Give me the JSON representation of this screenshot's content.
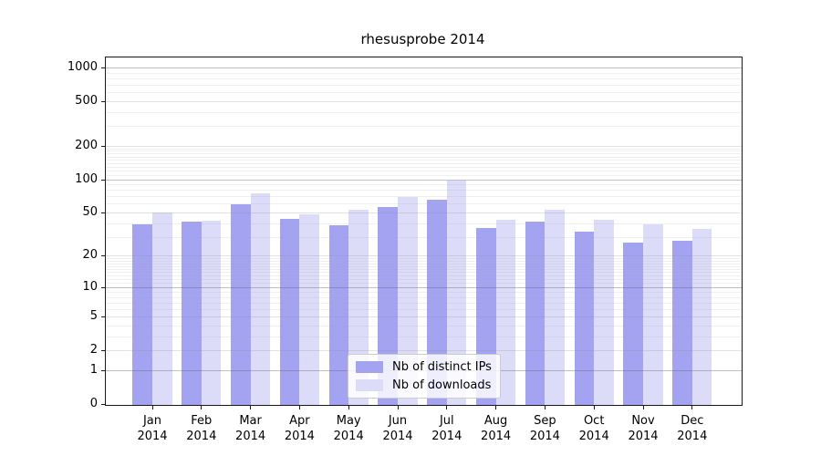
{
  "title": "rhesusprobe 2014",
  "chart_data": {
    "type": "bar",
    "title": "rhesusprobe 2014",
    "year": "2014",
    "categories": [
      "Jan",
      "Feb",
      "Mar",
      "Apr",
      "May",
      "Jun",
      "Jul",
      "Aug",
      "Sep",
      "Oct",
      "Nov",
      "Dec"
    ],
    "series": [
      {
        "key": "ips",
        "name": "Nb of distinct IPs",
        "color": "#a3a3f2",
        "values": [
          40,
          42,
          60,
          45,
          39,
          57,
          66,
          37,
          42,
          34,
          27,
          28
        ]
      },
      {
        "key": "downloads",
        "name": "Nb of downloads",
        "color": "#dcdcf8",
        "values": [
          51,
          43,
          76,
          49,
          54,
          70,
          100,
          44,
          54,
          44,
          40,
          36
        ]
      }
    ],
    "y_axis": {
      "scale": "log1p",
      "ticks": [
        0,
        1,
        2,
        5,
        10,
        20,
        50,
        100,
        200,
        500,
        1000
      ],
      "tick_labels": [
        "0",
        "1",
        "2",
        "5",
        "10",
        "20",
        "50",
        "100",
        "200",
        "500",
        "1000"
      ],
      "minor_ticks": [
        3,
        4,
        6,
        7,
        8,
        9,
        11,
        12,
        13,
        14,
        15,
        16,
        17,
        18,
        19,
        30,
        40,
        60,
        70,
        80,
        90,
        110,
        120,
        130,
        140,
        150,
        160,
        170,
        180,
        190,
        300,
        400,
        600,
        700,
        800,
        900
      ],
      "emphasized_gridlines": [
        1,
        10,
        100,
        1000
      ],
      "ylim": [
        0,
        1250
      ]
    },
    "xlabel": "",
    "ylabel": "",
    "grid": true,
    "legend_position": "bottom-center"
  },
  "colors": {
    "bar_ips": "#a3a3f2",
    "bar_downloads": "#dcdcf8",
    "spine": "#1a1a1a",
    "text": "#000000",
    "legend_border": "#cccccc",
    "background": "#ffffff"
  }
}
